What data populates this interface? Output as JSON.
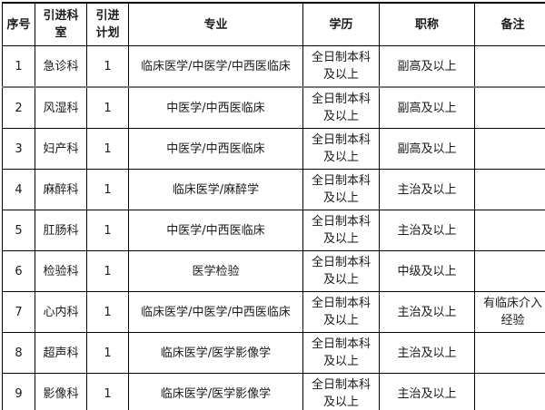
{
  "table": {
    "headers": [
      "序号",
      "引进科室",
      "引进计划",
      "专业",
      "学历",
      "职称",
      "备注"
    ],
    "rows": [
      [
        "1",
        "急诊科",
        "1",
        "临床医学/中医学/中西医临床",
        "全日制本科及以上",
        "副高及以上",
        ""
      ],
      [
        "2",
        "风湿科",
        "1",
        "中医学/中西医临床",
        "全日制本科及以上",
        "副高及以上",
        ""
      ],
      [
        "3",
        "妇产科",
        "1",
        "中医学/中西医临床",
        "全日制本科及以上",
        "副高及以上",
        ""
      ],
      [
        "4",
        "麻醉科",
        "1",
        "临床医学/麻醉学",
        "全日制本科及以上",
        "主治及以上",
        ""
      ],
      [
        "5",
        "肛肠科",
        "1",
        "中医学/中西医临床",
        "全日制本科及以上",
        "主治及以上",
        ""
      ],
      [
        "6",
        "检验科",
        "1",
        "医学检验",
        "全日制本科及以上",
        "中级及以上",
        ""
      ],
      [
        "7",
        "心内科",
        "1",
        "临床医学/中医学/中西医临床",
        "全日制本科及以上",
        "主治及以上",
        "有临床介入经验"
      ],
      [
        "8",
        "超声科",
        "1",
        "临床医学/医学影像学",
        "全日制本科及以上",
        "主治及以上",
        ""
      ],
      [
        "9",
        "影像科",
        "1",
        "临床医学/医学影像学",
        "全日制本科及以上",
        "主治及以上",
        ""
      ]
    ]
  },
  "colors": {
    "border": "#000000",
    "row_divider": "#777777",
    "text": "#1a1a1a",
    "background": "#ffffff"
  }
}
